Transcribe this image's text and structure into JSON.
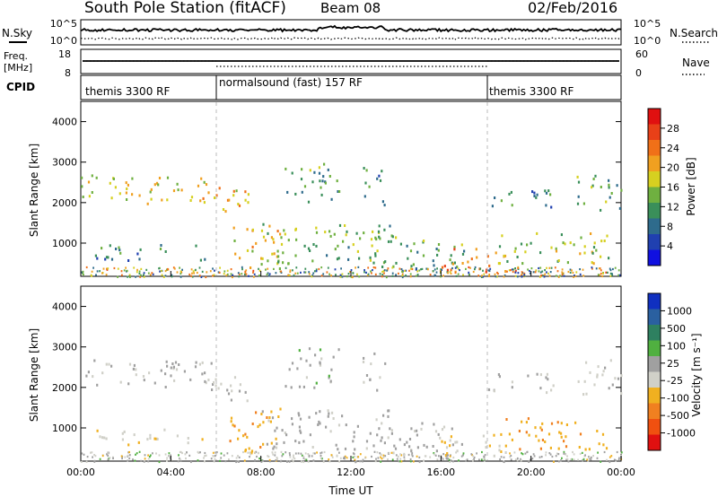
{
  "header": {
    "title": "South Pole Station (fitACF)",
    "beam": "Beam 08",
    "date": "02/Feb/2016"
  },
  "noise_panel": {
    "left_label": "N.Sky",
    "right_label": "N.Search",
    "left_ticks": [
      "10^5",
      "10^0"
    ],
    "right_ticks": [
      "10^5",
      "10^0"
    ]
  },
  "freq_panel": {
    "left_label_1": "Freq.",
    "left_label_2": "[MHz]",
    "right_label": "Nave",
    "left_ticks": [
      "18",
      "8"
    ],
    "right_ticks": [
      "60",
      "0"
    ]
  },
  "cpid_panel": {
    "label": "CPID",
    "segments": [
      {
        "start_hour": 0,
        "end_hour": 6,
        "label": "themis 3300 RF"
      },
      {
        "start_hour": 6,
        "end_hour": 18,
        "label": "normalsound (fast) 157 RF"
      },
      {
        "start_hour": 18,
        "end_hour": 24,
        "label": "themis 3300 RF"
      }
    ]
  },
  "x_axis": {
    "label": "Time UT",
    "ticks": [
      "00:00",
      "04:00",
      "08:00",
      "12:00",
      "16:00",
      "20:00",
      "00:00"
    ]
  },
  "power_panel": {
    "ylabel": "Slant Range [km]",
    "yticks": [
      "4000",
      "3000",
      "2000",
      "1000"
    ],
    "colorbar_label": "Power [dB]",
    "colorbar_ticks": [
      "28",
      "24",
      "20",
      "16",
      "12",
      "8",
      "4"
    ],
    "colors": [
      "#1010e0",
      "#2040b0",
      "#2e6b8c",
      "#3a8f5a",
      "#6fb040",
      "#d6d020",
      "#f0a020",
      "#f07018",
      "#e84018",
      "#e01010"
    ]
  },
  "velocity_panel": {
    "ylabel": "Slant Range [km]",
    "yticks": [
      "4000",
      "3000",
      "2000",
      "1000"
    ],
    "colorbar_label": "Velocity [m s⁻¹]",
    "colorbar_ticks": [
      "1000",
      "500",
      "100",
      "25",
      "-25",
      "-100",
      "-500",
      "-1000"
    ],
    "colors": [
      "#1030c0",
      "#2a60a0",
      "#2e8060",
      "#50b040",
      "#a0a0a0",
      "#d0d0c8",
      "#f0b020",
      "#f08020",
      "#f05010",
      "#e01010"
    ]
  },
  "chart_data": {
    "type": "heatmap",
    "x_range_hours": [
      0,
      24
    ],
    "y_range_km": [
      180,
      4500
    ],
    "scatter_regions": [
      {
        "t0": 0.0,
        "t1": 6.0,
        "r0": 2000,
        "r1": 2700,
        "power": 18,
        "velocity": 0
      },
      {
        "t0": 5.5,
        "t1": 7.5,
        "r0": 1700,
        "r1": 2400,
        "power": 20,
        "velocity": 0
      },
      {
        "t0": 0.5,
        "t1": 5.5,
        "r0": 600,
        "r1": 1000,
        "power": 10,
        "velocity": -150
      },
      {
        "t0": 6.5,
        "t1": 9.0,
        "r0": 400,
        "r1": 1500,
        "power": 18,
        "velocity": -400
      },
      {
        "t0": 8.0,
        "t1": 14.0,
        "r0": 500,
        "r1": 1500,
        "power": 14,
        "velocity": 80
      },
      {
        "t0": 9.0,
        "t1": 11.5,
        "r0": 2000,
        "r1": 3000,
        "power": 12,
        "velocity": 120
      },
      {
        "t0": 12.5,
        "t1": 13.5,
        "r0": 1900,
        "r1": 2900,
        "power": 10,
        "velocity": 20
      },
      {
        "t0": 13.0,
        "t1": 17.0,
        "r0": 400,
        "r1": 1200,
        "power": 12,
        "velocity": 60
      },
      {
        "t0": 16.0,
        "t1": 19.0,
        "r0": 300,
        "r1": 900,
        "power": 24,
        "velocity": -200
      },
      {
        "t0": 18.5,
        "t1": 23.5,
        "r0": 500,
        "r1": 1300,
        "power": 16,
        "velocity": -400
      },
      {
        "t0": 18.0,
        "t1": 21.0,
        "r0": 1900,
        "r1": 2400,
        "power": 10,
        "velocity": 30
      },
      {
        "t0": 22.0,
        "t1": 24.0,
        "r0": 1800,
        "r1": 2700,
        "power": 12,
        "velocity": -60
      }
    ]
  }
}
